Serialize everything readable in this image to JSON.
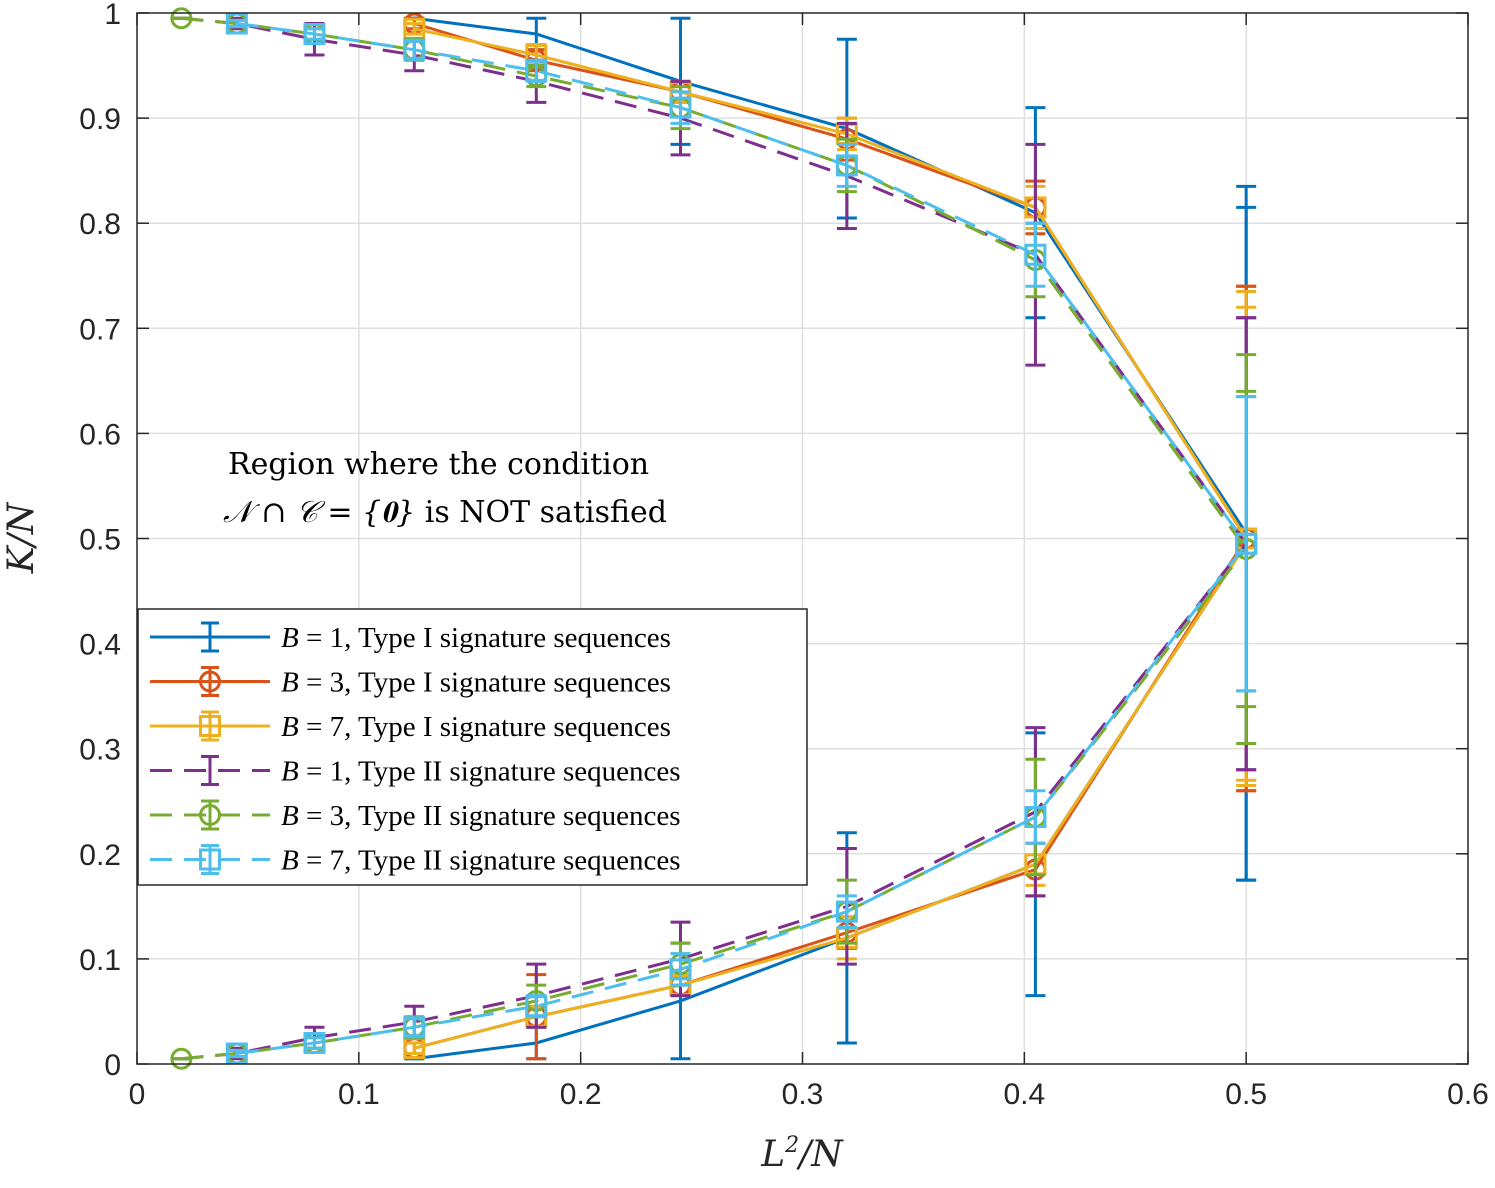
{
  "chart_data": {
    "type": "line",
    "title": "",
    "xlabel": "L^2/N",
    "ylabel": "K/N",
    "xlim": [
      0,
      0.6
    ],
    "ylim": [
      0,
      1
    ],
    "grid": true,
    "xticks": [
      0,
      0.1,
      0.2,
      0.3,
      0.4,
      0.5,
      0.6
    ],
    "xtick_labels": [
      "0",
      "0.1",
      "0.2",
      "0.3",
      "0.4",
      "0.5",
      "0.6"
    ],
    "yticks": [
      0,
      0.1,
      0.2,
      0.3,
      0.4,
      0.5,
      0.6,
      0.7,
      0.8,
      0.9,
      1
    ],
    "ytick_labels": [
      "0",
      "0.1",
      "0.2",
      "0.3",
      "0.4",
      "0.5",
      "0.6",
      "0.7",
      "0.8",
      "0.9",
      "1"
    ],
    "annotation": {
      "line1": "Region where the condition",
      "line2_math": "𝒩 ∩ 𝒞 = {𝟎}",
      "line2_text": " is NOT satisfied"
    },
    "legend_position": "middle-left",
    "series": [
      {
        "name": "B = 1, Type I signature sequences",
        "legend_var": "B",
        "legend_rest": " = 1, Type I signature sequences",
        "color": "#0072bd",
        "dash": "solid",
        "marker": "none",
        "upper": [
          [
            0.125,
            0.995,
            0.0
          ],
          [
            0.18,
            0.98,
            0.015
          ],
          [
            0.245,
            0.935,
            0.06
          ],
          [
            0.32,
            0.89,
            0.085
          ],
          [
            0.405,
            0.81,
            0.1
          ],
          [
            0.5,
            0.505,
            0.33
          ]
        ],
        "lower": [
          [
            0.125,
            0.005,
            0.0
          ],
          [
            0.18,
            0.02,
            0.015
          ],
          [
            0.245,
            0.06,
            0.055
          ],
          [
            0.32,
            0.12,
            0.1
          ],
          [
            0.405,
            0.19,
            0.125
          ],
          [
            0.5,
            0.495,
            0.32
          ]
        ]
      },
      {
        "name": "B = 3, Type I signature sequences",
        "legend_var": "B",
        "legend_rest": " = 3, Type I signature sequences",
        "color": "#d95319",
        "dash": "solid",
        "marker": "circle",
        "upper": [
          [
            0.125,
            0.99,
            0.005
          ],
          [
            0.18,
            0.955,
            0.01
          ],
          [
            0.245,
            0.925,
            0.01
          ],
          [
            0.32,
            0.88,
            0.02
          ],
          [
            0.405,
            0.815,
            0.025
          ],
          [
            0.5,
            0.5,
            0.24
          ]
        ],
        "lower": [
          [
            0.125,
            0.015,
            0.005
          ],
          [
            0.18,
            0.045,
            0.04
          ],
          [
            0.245,
            0.075,
            0.01
          ],
          [
            0.32,
            0.125,
            0.015
          ],
          [
            0.405,
            0.185,
            0.025
          ],
          [
            0.5,
            0.5,
            0.24
          ]
        ]
      },
      {
        "name": "B = 7, Type I signature sequences",
        "legend_var": "B",
        "legend_rest": " = 7, Type I signature sequences",
        "color": "#edb120",
        "dash": "solid",
        "marker": "square",
        "upper": [
          [
            0.125,
            0.985,
            0.005
          ],
          [
            0.18,
            0.96,
            0.01
          ],
          [
            0.245,
            0.925,
            0.01
          ],
          [
            0.32,
            0.885,
            0.015
          ],
          [
            0.405,
            0.815,
            0.02
          ],
          [
            0.5,
            0.5,
            0.235
          ]
        ],
        "lower": [
          [
            0.125,
            0.015,
            0.005
          ],
          [
            0.18,
            0.045,
            0.01
          ],
          [
            0.245,
            0.075,
            0.01
          ],
          [
            0.32,
            0.12,
            0.02
          ],
          [
            0.405,
            0.19,
            0.02
          ],
          [
            0.5,
            0.495,
            0.225
          ]
        ]
      },
      {
        "name": "B = 1, Type II signature sequences",
        "legend_var": "B",
        "legend_rest": " = 1, Type II signature sequences",
        "color": "#7e2f8e",
        "dash": "dashed",
        "marker": "none",
        "upper": [
          [
            0.02,
            0.995,
            0.0
          ],
          [
            0.045,
            0.99,
            0.005
          ],
          [
            0.08,
            0.975,
            0.015
          ],
          [
            0.125,
            0.96,
            0.015
          ],
          [
            0.18,
            0.935,
            0.02
          ],
          [
            0.245,
            0.9,
            0.035
          ],
          [
            0.32,
            0.845,
            0.05
          ],
          [
            0.405,
            0.77,
            0.105
          ],
          [
            0.5,
            0.495,
            0.215
          ]
        ],
        "lower": [
          [
            0.02,
            0.005,
            0.0
          ],
          [
            0.045,
            0.01,
            0.005
          ],
          [
            0.08,
            0.025,
            0.01
          ],
          [
            0.125,
            0.04,
            0.015
          ],
          [
            0.18,
            0.065,
            0.03
          ],
          [
            0.245,
            0.1,
            0.035
          ],
          [
            0.32,
            0.15,
            0.055
          ],
          [
            0.405,
            0.24,
            0.08
          ],
          [
            0.5,
            0.495,
            0.215
          ]
        ]
      },
      {
        "name": "B = 3, Type II signature sequences",
        "legend_var": "B",
        "legend_rest": " = 3, Type II signature sequences",
        "color": "#77ac30",
        "dash": "dashed",
        "marker": "circle",
        "upper": [
          [
            0.02,
            0.995,
            0.0
          ],
          [
            0.045,
            0.99,
            0.003
          ],
          [
            0.08,
            0.98,
            0.005
          ],
          [
            0.125,
            0.965,
            0.01
          ],
          [
            0.18,
            0.94,
            0.01
          ],
          [
            0.245,
            0.91,
            0.02
          ],
          [
            0.32,
            0.855,
            0.025
          ],
          [
            0.405,
            0.765,
            0.035
          ],
          [
            0.5,
            0.49,
            0.185
          ]
        ],
        "lower": [
          [
            0.02,
            0.005,
            0.0
          ],
          [
            0.045,
            0.01,
            0.003
          ],
          [
            0.08,
            0.02,
            0.005
          ],
          [
            0.125,
            0.035,
            0.01
          ],
          [
            0.18,
            0.06,
            0.015
          ],
          [
            0.245,
            0.095,
            0.02
          ],
          [
            0.32,
            0.145,
            0.03
          ],
          [
            0.405,
            0.235,
            0.055
          ],
          [
            0.5,
            0.49,
            0.15
          ]
        ]
      },
      {
        "name": "B = 7, Type II signature sequences",
        "legend_var": "B",
        "legend_rest": " = 7, Type II signature sequences",
        "color": "#4dbeee",
        "dash": "dashed",
        "marker": "square",
        "upper": [
          [
            0.045,
            0.99,
            0.003
          ],
          [
            0.08,
            0.98,
            0.005
          ],
          [
            0.125,
            0.965,
            0.008
          ],
          [
            0.18,
            0.945,
            0.01
          ],
          [
            0.245,
            0.91,
            0.015
          ],
          [
            0.32,
            0.855,
            0.02
          ],
          [
            0.405,
            0.77,
            0.03
          ],
          [
            0.5,
            0.495,
            0.14
          ]
        ],
        "lower": [
          [
            0.045,
            0.01,
            0.003
          ],
          [
            0.08,
            0.02,
            0.005
          ],
          [
            0.125,
            0.035,
            0.008
          ],
          [
            0.18,
            0.055,
            0.01
          ],
          [
            0.245,
            0.09,
            0.015
          ],
          [
            0.32,
            0.145,
            0.015
          ],
          [
            0.405,
            0.235,
            0.025
          ],
          [
            0.5,
            0.495,
            0.14
          ]
        ]
      }
    ]
  }
}
